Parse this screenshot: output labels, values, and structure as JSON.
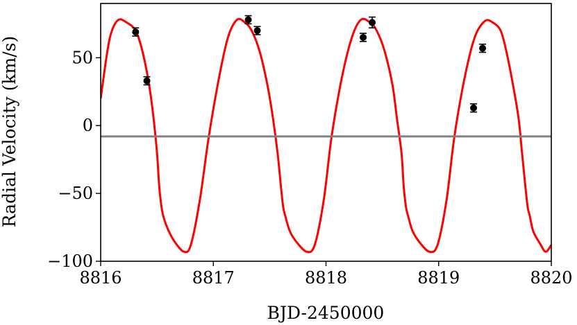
{
  "chart_data": {
    "type": "scatter",
    "title": "",
    "xlabel": "BJD-2450000",
    "ylabel": "Radial Velocity (km/s)",
    "xlim": [
      8816,
      8820
    ],
    "ylim": [
      -100,
      90
    ],
    "x_ticks": [
      8816,
      8817,
      8818,
      8819,
      8820
    ],
    "x_tick_labels": [
      "8816",
      "8817",
      "8818",
      "8819",
      "8820"
    ],
    "y_ticks": [
      -100,
      -50,
      0,
      50
    ],
    "y_tick_labels": [
      "−100",
      "−50",
      "0",
      "50"
    ],
    "grid": false,
    "colors": {
      "model": "#ff0000",
      "systemic": "#808080",
      "points": "#000000"
    },
    "systemic_velocity": -8,
    "observations": [
      {
        "x": 8816.31,
        "y": 69,
        "err": 3
      },
      {
        "x": 8816.41,
        "y": 33,
        "err": 3
      },
      {
        "x": 8817.31,
        "y": 78,
        "err": 3
      },
      {
        "x": 8817.39,
        "y": 70,
        "err": 3
      },
      {
        "x": 8818.33,
        "y": 65,
        "err": 3
      },
      {
        "x": 8818.41,
        "y": 76,
        "err": 4
      },
      {
        "x": 8819.31,
        "y": 13,
        "err": 3
      },
      {
        "x": 8819.39,
        "y": 57,
        "err": 3
      }
    ],
    "model": {
      "x": [
        8816.0,
        8816.06,
        8816.1,
        8816.16,
        8816.23,
        8816.31,
        8816.37,
        8816.43,
        8816.47,
        8816.5,
        8816.52,
        8816.54,
        8816.56,
        8816.6,
        8816.66,
        8816.74,
        8816.8,
        8816.88,
        8816.96,
        8817.05,
        8817.13,
        8817.21,
        8817.28,
        8817.34,
        8817.41,
        8817.48,
        8817.53,
        8817.57,
        8817.6,
        8817.62,
        8817.64,
        8817.68,
        8817.74,
        8817.83,
        8817.9,
        8817.98,
        8818.05,
        8818.14,
        8818.23,
        8818.31,
        8818.39,
        8818.45,
        8818.52,
        8818.59,
        8818.63,
        8818.67,
        8818.69,
        8818.71,
        8818.73,
        8818.77,
        8818.84,
        8818.92,
        8818.99,
        8819.07,
        8819.14,
        8819.23,
        8819.32,
        8819.41,
        8819.48,
        8819.55,
        8819.6,
        8819.66,
        8819.71,
        8819.74,
        8819.77,
        8819.79,
        8819.81,
        8819.84,
        8819.9,
        8819.95,
        8820.0
      ],
      "y": [
        20,
        55,
        70,
        78,
        76,
        70,
        55,
        30,
        5,
        -20,
        -45,
        -60,
        -68,
        -77,
        -86,
        -93,
        -88,
        -55,
        -8,
        35,
        65,
        78,
        76,
        70,
        55,
        30,
        5,
        -20,
        -45,
        -60,
        -67,
        -78,
        -86,
        -93,
        -88,
        -55,
        -8,
        35,
        65,
        78,
        76,
        70,
        55,
        30,
        5,
        -20,
        -45,
        -60,
        -67,
        -78,
        -87,
        -93,
        -88,
        -55,
        -8,
        35,
        65,
        77,
        76,
        70,
        55,
        30,
        5,
        -20,
        -45,
        -60,
        -67,
        -78,
        -87,
        -93,
        -88
      ]
    }
  }
}
